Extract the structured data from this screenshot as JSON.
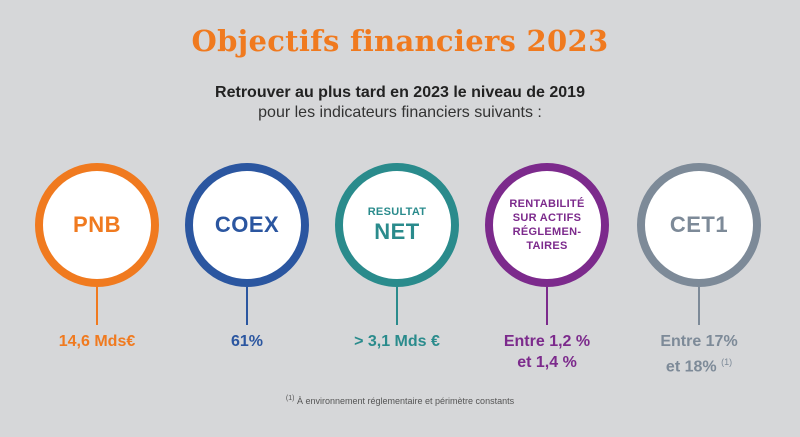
{
  "title": "Objectifs financiers 2023",
  "subtitle_line1": "Retrouver au plus tard en 2023 le niveau de 2019",
  "subtitle_line2": "pour les indicateurs financiers suivants :",
  "colors": {
    "title": "#f07a1f",
    "pnb": "#f07a1f",
    "coex": "#2b56a0",
    "resultat": "#2a8b8c",
    "rentabilite": "#7c2a8c",
    "cet1": "#7d8a98"
  },
  "kpis": {
    "pnb": {
      "label": "PNB",
      "value": "14,6 Mds€"
    },
    "coex": {
      "label": "COEX",
      "value": "61%"
    },
    "resultat": {
      "label_small": "RESULTAT",
      "label_big": "NET",
      "value": "> 3,1 Mds €"
    },
    "rentabilite": {
      "label_lines": [
        "RENTABILITÉ",
        "SUR ACTIFS",
        "RÉGLEMEN-",
        "TAIRES"
      ],
      "value_line1": "Entre 1,2 %",
      "value_line2": "et 1,4 %"
    },
    "cet1": {
      "label": "CET1",
      "value_line1": "Entre 17%",
      "value_line2": "et 18%",
      "note_marker": "(1)"
    }
  },
  "footnote": {
    "marker": "(1)",
    "text": "À environnement réglementaire et périmètre constants"
  }
}
